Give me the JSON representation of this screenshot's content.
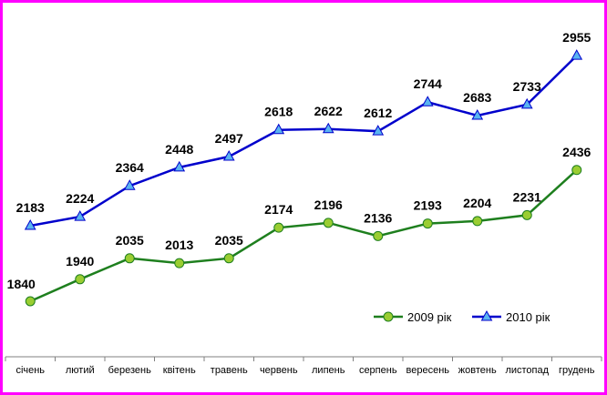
{
  "chart_data": {
    "type": "line",
    "categories": [
      "січень",
      "лютий",
      "березень",
      "квітень",
      "травень",
      "червень",
      "липень",
      "серпень",
      "вересень",
      "жовтень",
      "листопад",
      "грудень"
    ],
    "series": [
      {
        "name": "2009 рік",
        "values": [
          1840,
          1940,
          2035,
          2013,
          2035,
          2174,
          2196,
          2136,
          2193,
          2204,
          2231,
          2436
        ],
        "color": "#1e7f1e",
        "marker": "circle",
        "marker_color": "#9acd32"
      },
      {
        "name": "2010 рік",
        "values": [
          2183,
          2224,
          2364,
          2448,
          2497,
          2618,
          2622,
          2612,
          2744,
          2683,
          2733,
          2955
        ],
        "color": "#0000cc",
        "marker": "triangle",
        "marker_color": "#5ab4f0"
      }
    ],
    "legend_position": "bottom-right",
    "data_labels": true,
    "grid": false,
    "frame_color": "#ff00ff"
  }
}
